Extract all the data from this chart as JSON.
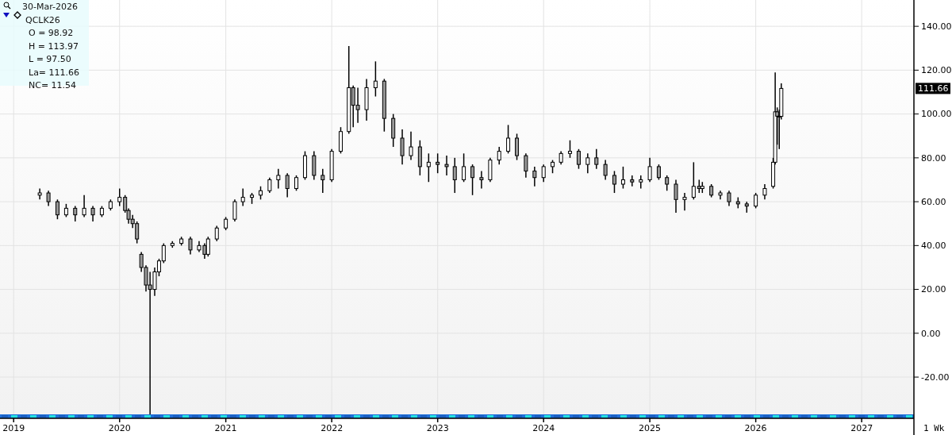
{
  "chart_data": {
    "type": "candlestick",
    "color": "#000000",
    "grid": true,
    "xlim": [
      "2018-11-15",
      "2027-06-30"
    ],
    "ylim": [
      -37,
      152
    ],
    "xticks": [
      {
        "value": "2019-01-01",
        "label": "2019"
      },
      {
        "value": "2020-01-01",
        "label": "2020"
      },
      {
        "value": "2021-01-01",
        "label": "2021"
      },
      {
        "value": "2022-01-01",
        "label": "2022"
      },
      {
        "value": "2023-01-01",
        "label": "2023"
      },
      {
        "value": "2024-01-01",
        "label": "2024"
      },
      {
        "value": "2025-01-01",
        "label": "2025"
      },
      {
        "value": "2026-01-01",
        "label": "2026"
      },
      {
        "value": "2027-01-01",
        "label": "2027"
      }
    ],
    "yticks": [
      {
        "value": -20,
        "label": "-20.00"
      },
      {
        "value": 0,
        "label": "0.00"
      },
      {
        "value": 20,
        "label": "20.00"
      },
      {
        "value": 40,
        "label": "40.00"
      },
      {
        "value": 60,
        "label": "60.00"
      },
      {
        "value": 80,
        "label": "80.00"
      },
      {
        "value": 100,
        "label": "100.00"
      },
      {
        "value": 120,
        "label": "120.00"
      },
      {
        "value": 140,
        "label": "140.00"
      }
    ],
    "x": [
      "2019-04-01",
      "2019-05-01",
      "2019-06-01",
      "2019-07-01",
      "2019-08-01",
      "2019-09-01",
      "2019-10-01",
      "2019-11-01",
      "2019-12-01",
      "2020-01-01",
      "2020-01-20",
      "2020-02-01",
      "2020-02-15",
      "2020-03-01",
      "2020-03-16",
      "2020-04-01",
      "2020-04-15",
      "2020-05-01",
      "2020-05-16",
      "2020-06-01",
      "2020-07-01",
      "2020-08-01",
      "2020-09-01",
      "2020-10-01",
      "2020-10-20",
      "2020-11-01",
      "2020-12-01",
      "2021-01-01",
      "2021-02-01",
      "2021-03-01",
      "2021-04-01",
      "2021-05-01",
      "2021-06-01",
      "2021-07-01",
      "2021-08-01",
      "2021-09-01",
      "2021-10-01",
      "2021-11-01",
      "2021-12-01",
      "2022-01-01",
      "2022-02-01",
      "2022-03-01",
      "2022-03-16",
      "2022-04-01",
      "2022-05-01",
      "2022-06-01",
      "2022-07-01",
      "2022-08-01",
      "2022-09-01",
      "2022-10-01",
      "2022-11-01",
      "2022-12-01",
      "2023-01-01",
      "2023-02-01",
      "2023-03-01",
      "2023-04-01",
      "2023-05-01",
      "2023-06-01",
      "2023-07-01",
      "2023-08-01",
      "2023-09-01",
      "2023-10-01",
      "2023-11-01",
      "2023-12-01",
      "2024-01-01",
      "2024-02-01",
      "2024-03-01",
      "2024-04-01",
      "2024-05-01",
      "2024-06-01",
      "2024-07-01",
      "2024-08-01",
      "2024-09-01",
      "2024-10-01",
      "2024-11-01",
      "2024-12-01",
      "2025-01-01",
      "2025-02-01",
      "2025-03-01",
      "2025-04-01",
      "2025-05-01",
      "2025-06-01",
      "2025-06-20",
      "2025-07-01",
      "2025-08-01",
      "2025-09-01",
      "2025-10-01",
      "2025-11-01",
      "2025-12-01",
      "2026-01-01",
      "2026-02-01",
      "2026-03-02",
      "2026-03-09",
      "2026-03-16",
      "2026-03-23",
      "2026-03-30"
    ],
    "ohlc": [
      [
        63,
        66,
        61,
        64
      ],
      [
        64,
        65,
        58,
        60
      ],
      [
        60,
        61,
        52,
        54
      ],
      [
        54,
        59,
        53,
        57
      ],
      [
        57,
        58,
        51,
        54
      ],
      [
        54,
        63,
        53,
        57
      ],
      [
        57,
        58,
        51,
        54
      ],
      [
        54,
        58,
        53,
        57
      ],
      [
        57,
        61,
        56,
        60
      ],
      [
        60,
        66,
        58,
        62
      ],
      [
        62,
        63,
        55,
        56
      ],
      [
        56,
        57,
        50,
        52
      ],
      [
        52,
        54,
        48,
        50
      ],
      [
        50,
        51,
        41,
        43
      ],
      [
        36,
        37,
        28,
        30
      ],
      [
        30,
        31,
        19,
        22
      ],
      [
        22,
        28,
        -37,
        20
      ],
      [
        20,
        30,
        17,
        28
      ],
      [
        28,
        34,
        26,
        33
      ],
      [
        33,
        41,
        32,
        40
      ],
      [
        40,
        42,
        39,
        41
      ],
      [
        41,
        44,
        40,
        43
      ],
      [
        43,
        44,
        36,
        38
      ],
      [
        38,
        42,
        37,
        40
      ],
      [
        40,
        41,
        34,
        36
      ],
      [
        36,
        44,
        35,
        43
      ],
      [
        43,
        49,
        42,
        48
      ],
      [
        48,
        53,
        47,
        52
      ],
      [
        52,
        61,
        51,
        60
      ],
      [
        60,
        66,
        58,
        62
      ],
      [
        62,
        64,
        59,
        63
      ],
      [
        63,
        67,
        61,
        65
      ],
      [
        65,
        71,
        64,
        70
      ],
      [
        70,
        75,
        66,
        72
      ],
      [
        72,
        73,
        62,
        66
      ],
      [
        66,
        72,
        65,
        71
      ],
      [
        71,
        83,
        70,
        81
      ],
      [
        81,
        83,
        70,
        72
      ],
      [
        72,
        75,
        64,
        70
      ],
      [
        70,
        84,
        69,
        83
      ],
      [
        83,
        94,
        82,
        92
      ],
      [
        92,
        131,
        91,
        112
      ],
      [
        112,
        113,
        94,
        104
      ],
      [
        104,
        112,
        96,
        102
      ],
      [
        102,
        116,
        97,
        112
      ],
      [
        112,
        124,
        108,
        115
      ],
      [
        115,
        116,
        92,
        98
      ],
      [
        98,
        100,
        85,
        89
      ],
      [
        89,
        93,
        77,
        81
      ],
      [
        81,
        92,
        79,
        85
      ],
      [
        85,
        88,
        72,
        76
      ],
      [
        76,
        82,
        69,
        78
      ],
      [
        78,
        82,
        73,
        77
      ],
      [
        77,
        81,
        72,
        76
      ],
      [
        76,
        80,
        64,
        70
      ],
      [
        70,
        82,
        69,
        76
      ],
      [
        76,
        77,
        63,
        71
      ],
      [
        71,
        74,
        66,
        70
      ],
      [
        70,
        80,
        69,
        79
      ],
      [
        79,
        85,
        77,
        83
      ],
      [
        83,
        95,
        82,
        89
      ],
      [
        89,
        91,
        79,
        81
      ],
      [
        81,
        82,
        71,
        74
      ],
      [
        74,
        76,
        67,
        71
      ],
      [
        71,
        77,
        69,
        76
      ],
      [
        76,
        79,
        73,
        78
      ],
      [
        78,
        83,
        77,
        82
      ],
      [
        82,
        88,
        80,
        83
      ],
      [
        83,
        84,
        75,
        77
      ],
      [
        77,
        82,
        73,
        80
      ],
      [
        80,
        84,
        75,
        77
      ],
      [
        77,
        79,
        70,
        72
      ],
      [
        72,
        74,
        64,
        68
      ],
      [
        68,
        76,
        66,
        70
      ],
      [
        70,
        72,
        67,
        69
      ],
      [
        69,
        72,
        66,
        70
      ],
      [
        70,
        80,
        69,
        76
      ],
      [
        76,
        77,
        70,
        71
      ],
      [
        71,
        72,
        65,
        68
      ],
      [
        68,
        70,
        55,
        61
      ],
      [
        61,
        64,
        56,
        62
      ],
      [
        62,
        78,
        61,
        67
      ],
      [
        67,
        70,
        64,
        66
      ],
      [
        66,
        69,
        64,
        67
      ],
      [
        67,
        68,
        62,
        63
      ],
      [
        63,
        65,
        61,
        64
      ],
      [
        64,
        65,
        58,
        60
      ],
      [
        60,
        62,
        57,
        59
      ],
      [
        59,
        60,
        55,
        58
      ],
      [
        58,
        64,
        57,
        63
      ],
      [
        63,
        68,
        61,
        66
      ],
      [
        67,
        80,
        66,
        78
      ],
      [
        78,
        119,
        77,
        101
      ],
      [
        101,
        103,
        86,
        99
      ],
      [
        99,
        102,
        84,
        98.92
      ],
      [
        98.92,
        113.97,
        97.5,
        111.66
      ]
    ],
    "annotations": [
      "30-Mar-2026",
      "QCLK26",
      "O = 98.92",
      "H = 113.97",
      "L = 97.50",
      "La= 111.66",
      "NC= 11.54",
      "111.66",
      "1 Wk"
    ]
  }
}
